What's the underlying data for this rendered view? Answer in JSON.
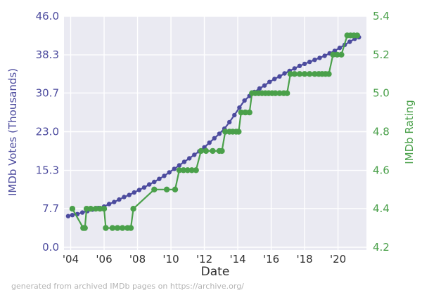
{
  "figure": {
    "background": "#ffffff",
    "plot_background": "#eaeaf2",
    "grid_color": "#ffffff",
    "x_tick_color": "#303030",
    "footer_color": "#b4b4b4"
  },
  "chart_data": {
    "type": "line",
    "title": "",
    "xlabel": "Date",
    "ylabel_left": "IMDb Votes (Thousands)",
    "ylabel_right": "IMDb Rating",
    "footer": "generated from archived IMDb pages on https://archive.org/",
    "grid": true,
    "legend": "none",
    "xlim": [
      2003.6,
      2021.7
    ],
    "x_ticks": [
      {
        "year": 2004,
        "label": "'04"
      },
      {
        "year": 2006,
        "label": "'06"
      },
      {
        "year": 2008,
        "label": "'08"
      },
      {
        "year": 2010,
        "label": "'10"
      },
      {
        "year": 2012,
        "label": "'12"
      },
      {
        "year": 2014,
        "label": "'14"
      },
      {
        "year": 2016,
        "label": "'16"
      },
      {
        "year": 2018,
        "label": "'18"
      },
      {
        "year": 2020,
        "label": "'20"
      }
    ],
    "left_axis": {
      "lim": [
        0.0,
        46.0
      ],
      "color": "#4c4b9e",
      "ticks": [
        {
          "v": 46.0,
          "label": "46.0"
        },
        {
          "v": 38.3,
          "label": "38.3"
        },
        {
          "v": 30.7,
          "label": "30.7"
        },
        {
          "v": 23.0,
          "label": "23.0"
        },
        {
          "v": 15.3,
          "label": "15.3"
        },
        {
          "v": 7.7,
          "label": "7.7"
        },
        {
          "v": 0.0,
          "label": "0.0"
        }
      ]
    },
    "right_axis": {
      "lim": [
        4.2,
        5.4
      ],
      "color": "#4aa04a",
      "ticks": [
        {
          "v": 5.4,
          "label": "5.4"
        },
        {
          "v": 5.2,
          "label": "5.2"
        },
        {
          "v": 5.0,
          "label": "5.0"
        },
        {
          "v": 4.8,
          "label": "4.8"
        },
        {
          "v": 4.6,
          "label": "4.6"
        },
        {
          "v": 4.4,
          "label": "4.4"
        },
        {
          "v": 4.2,
          "label": "4.2"
        }
      ]
    },
    "series": [
      {
        "name": "IMDb Votes (Thousands)",
        "axis": "left",
        "color": "#4c4b9e",
        "line_width": 2.2,
        "marker_radius": 3.2,
        "points": [
          [
            2003.85,
            6.2
          ],
          [
            2004.1,
            6.4
          ],
          [
            2004.4,
            6.6
          ],
          [
            2004.7,
            6.9
          ],
          [
            2005.0,
            7.2
          ],
          [
            2005.3,
            7.5
          ],
          [
            2005.65,
            7.8
          ],
          [
            2006.0,
            8.1
          ],
          [
            2006.3,
            8.6
          ],
          [
            2006.6,
            9.0
          ],
          [
            2006.9,
            9.5
          ],
          [
            2007.2,
            10.0
          ],
          [
            2007.5,
            10.4
          ],
          [
            2007.8,
            10.9
          ],
          [
            2008.1,
            11.4
          ],
          [
            2008.4,
            11.9
          ],
          [
            2008.7,
            12.5
          ],
          [
            2009.0,
            13.0
          ],
          [
            2009.3,
            13.6
          ],
          [
            2009.6,
            14.2
          ],
          [
            2009.9,
            14.9
          ],
          [
            2010.2,
            15.6
          ],
          [
            2010.5,
            16.3
          ],
          [
            2010.8,
            17.0
          ],
          [
            2011.1,
            17.7
          ],
          [
            2011.4,
            18.4
          ],
          [
            2011.7,
            19.1
          ],
          [
            2012.0,
            19.9
          ],
          [
            2012.3,
            20.8
          ],
          [
            2012.6,
            21.7
          ],
          [
            2012.9,
            22.6
          ],
          [
            2013.2,
            23.6
          ],
          [
            2013.5,
            24.9
          ],
          [
            2013.8,
            26.3
          ],
          [
            2014.1,
            27.8
          ],
          [
            2014.4,
            29.2
          ],
          [
            2014.7,
            30.1
          ],
          [
            2015.0,
            30.9
          ],
          [
            2015.3,
            31.6
          ],
          [
            2015.6,
            32.2
          ],
          [
            2015.9,
            32.9
          ],
          [
            2016.2,
            33.5
          ],
          [
            2016.5,
            34.0
          ],
          [
            2016.8,
            34.6
          ],
          [
            2017.1,
            35.1
          ],
          [
            2017.4,
            35.6
          ],
          [
            2017.7,
            36.1
          ],
          [
            2018.0,
            36.5
          ],
          [
            2018.3,
            36.9
          ],
          [
            2018.6,
            37.3
          ],
          [
            2018.9,
            37.7
          ],
          [
            2019.2,
            38.1
          ],
          [
            2019.5,
            38.6
          ],
          [
            2019.8,
            39.1
          ],
          [
            2020.1,
            39.7
          ],
          [
            2020.4,
            40.3
          ],
          [
            2020.7,
            40.9
          ],
          [
            2021.0,
            41.5
          ],
          [
            2021.25,
            41.8
          ]
        ]
      },
      {
        "name": "IMDb Rating",
        "axis": "right",
        "color": "#4aa04a",
        "line_width": 2.2,
        "marker_radius": 4.2,
        "points": [
          [
            2004.1,
            4.4
          ],
          [
            2004.75,
            4.3
          ],
          [
            2004.85,
            4.3
          ],
          [
            2004.95,
            4.4
          ],
          [
            2005.2,
            4.4
          ],
          [
            2005.5,
            4.4
          ],
          [
            2005.75,
            4.4
          ],
          [
            2006.0,
            4.4
          ],
          [
            2006.1,
            4.3
          ],
          [
            2006.5,
            4.3
          ],
          [
            2006.8,
            4.3
          ],
          [
            2007.1,
            4.3
          ],
          [
            2007.4,
            4.3
          ],
          [
            2007.6,
            4.3
          ],
          [
            2007.75,
            4.4
          ],
          [
            2009.0,
            4.5
          ],
          [
            2009.75,
            4.5
          ],
          [
            2010.25,
            4.5
          ],
          [
            2010.5,
            4.6
          ],
          [
            2010.75,
            4.6
          ],
          [
            2011.0,
            4.6
          ],
          [
            2011.25,
            4.6
          ],
          [
            2011.5,
            4.6
          ],
          [
            2011.8,
            4.7
          ],
          [
            2012.1,
            4.7
          ],
          [
            2012.5,
            4.7
          ],
          [
            2012.9,
            4.7
          ],
          [
            2013.05,
            4.7
          ],
          [
            2013.25,
            4.8
          ],
          [
            2013.5,
            4.8
          ],
          [
            2013.7,
            4.8
          ],
          [
            2013.9,
            4.8
          ],
          [
            2014.05,
            4.8
          ],
          [
            2014.2,
            4.9
          ],
          [
            2014.45,
            4.9
          ],
          [
            2014.7,
            4.9
          ],
          [
            2014.85,
            5.0
          ],
          [
            2015.05,
            5.0
          ],
          [
            2015.25,
            5.0
          ],
          [
            2015.45,
            5.0
          ],
          [
            2015.65,
            5.0
          ],
          [
            2015.85,
            5.0
          ],
          [
            2016.05,
            5.0
          ],
          [
            2016.25,
            5.0
          ],
          [
            2016.5,
            5.0
          ],
          [
            2016.75,
            5.0
          ],
          [
            2016.95,
            5.0
          ],
          [
            2017.15,
            5.1
          ],
          [
            2017.4,
            5.1
          ],
          [
            2017.7,
            5.1
          ],
          [
            2018.0,
            5.1
          ],
          [
            2018.3,
            5.1
          ],
          [
            2018.6,
            5.1
          ],
          [
            2018.85,
            5.1
          ],
          [
            2019.05,
            5.1
          ],
          [
            2019.25,
            5.1
          ],
          [
            2019.45,
            5.1
          ],
          [
            2019.7,
            5.2
          ],
          [
            2019.95,
            5.2
          ],
          [
            2020.2,
            5.2
          ],
          [
            2020.55,
            5.3
          ],
          [
            2020.75,
            5.3
          ],
          [
            2020.95,
            5.3
          ],
          [
            2021.15,
            5.3
          ]
        ]
      }
    ]
  }
}
